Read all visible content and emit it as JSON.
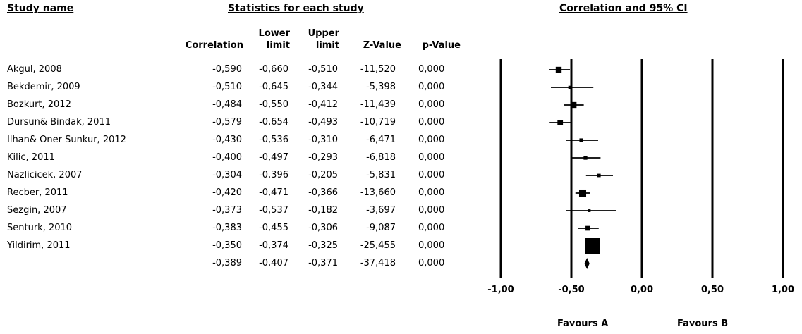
{
  "headers": {
    "study_name": "Study name",
    "statistics": "Statistics for each study",
    "ci": "Correlation and 95% CI"
  },
  "columns": {
    "correlation": "Correlation",
    "lower_top": "Lower",
    "lower_bottom": "limit",
    "upper_top": "Upper",
    "upper_bottom": "limit",
    "z_value": "Z-Value",
    "p_value": "p-Value"
  },
  "studies": [
    {
      "name": "Akgul, 2008",
      "correlation": "-0,590",
      "lower": "-0,660",
      "upper": "-0,510",
      "z": "-11,520",
      "p": "0,000"
    },
    {
      "name": "Bekdemir, 2009",
      "correlation": "-0,510",
      "lower": "-0,645",
      "upper": "-0,344",
      "z": "-5,398",
      "p": "0,000"
    },
    {
      "name": "Bozkurt, 2012",
      "correlation": "-0,484",
      "lower": "-0,550",
      "upper": "-0,412",
      "z": "-11,439",
      "p": "0,000"
    },
    {
      "name": "Dursun& Bindak, 2011",
      "correlation": "-0,579",
      "lower": "-0,654",
      "upper": "-0,493",
      "z": "-10,719",
      "p": "0,000"
    },
    {
      "name": "Ilhan& Oner Sunkur, 2012",
      "correlation": "-0,430",
      "lower": "-0,536",
      "upper": "-0,310",
      "z": "-6,471",
      "p": "0,000"
    },
    {
      "name": "Kilic, 2011",
      "correlation": "-0,400",
      "lower": "-0,497",
      "upper": "-0,293",
      "z": "-6,818",
      "p": "0,000"
    },
    {
      "name": "Nazlicicek, 2007",
      "correlation": "-0,304",
      "lower": "-0,396",
      "upper": "-0,205",
      "z": "-5,831",
      "p": "0,000"
    },
    {
      "name": "Recber, 2011",
      "correlation": "-0,420",
      "lower": "-0,471",
      "upper": "-0,366",
      "z": "-13,660",
      "p": "0,000"
    },
    {
      "name": "Sezgin, 2007",
      "correlation": "-0,373",
      "lower": "-0,537",
      "upper": "-0,182",
      "z": "-3,697",
      "p": "0,000"
    },
    {
      "name": "Senturk, 2010",
      "correlation": "-0,383",
      "lower": "-0,455",
      "upper": "-0,306",
      "z": "-9,087",
      "p": "0,000"
    },
    {
      "name": "Yildirim, 2011",
      "correlation": "-0,350",
      "lower": "-0,374",
      "upper": "-0,325",
      "z": "-25,455",
      "p": "0,000"
    }
  ],
  "summary": {
    "correlation": "-0,389",
    "lower": "-0,407",
    "upper": "-0,371",
    "z": "-37,418",
    "p": "0,000"
  },
  "favours": {
    "a": "Favours A",
    "b": "Favours B"
  },
  "chart_data": {
    "type": "forest",
    "x_ticks": [
      -1.0,
      -0.5,
      0.0,
      0.5,
      1.0
    ],
    "x_tick_labels": [
      "-1,00",
      "-0,50",
      "0,00",
      "0,50",
      "1,00"
    ],
    "xlim": [
      -1.0,
      1.0
    ],
    "studies": [
      {
        "name": "Akgul, 2008",
        "estimate": -0.59,
        "lower": -0.66,
        "upper": -0.51,
        "weight": 11.52
      },
      {
        "name": "Bekdemir, 2009",
        "estimate": -0.51,
        "lower": -0.645,
        "upper": -0.344,
        "weight": 5.398
      },
      {
        "name": "Bozkurt, 2012",
        "estimate": -0.484,
        "lower": -0.55,
        "upper": -0.412,
        "weight": 11.439
      },
      {
        "name": "Dursun& Bindak, 2011",
        "estimate": -0.579,
        "lower": -0.654,
        "upper": -0.493,
        "weight": 10.719
      },
      {
        "name": "Ilhan& Oner Sunkur, 2012",
        "estimate": -0.43,
        "lower": -0.536,
        "upper": -0.31,
        "weight": 6.471
      },
      {
        "name": "Kilic, 2011",
        "estimate": -0.4,
        "lower": -0.497,
        "upper": -0.293,
        "weight": 6.818
      },
      {
        "name": "Nazlicicek, 2007",
        "estimate": -0.304,
        "lower": -0.396,
        "upper": -0.205,
        "weight": 5.831
      },
      {
        "name": "Recber, 2011",
        "estimate": -0.42,
        "lower": -0.471,
        "upper": -0.366,
        "weight": 13.66
      },
      {
        "name": "Sezgin, 2007",
        "estimate": -0.373,
        "lower": -0.537,
        "upper": -0.182,
        "weight": 3.697
      },
      {
        "name": "Senturk, 2010",
        "estimate": -0.383,
        "lower": -0.455,
        "upper": -0.306,
        "weight": 9.087
      },
      {
        "name": "Yildirim, 2011",
        "estimate": -0.35,
        "lower": -0.374,
        "upper": -0.325,
        "weight": 25.455
      }
    ],
    "summary": {
      "estimate": -0.389,
      "lower": -0.407,
      "upper": -0.371
    }
  }
}
